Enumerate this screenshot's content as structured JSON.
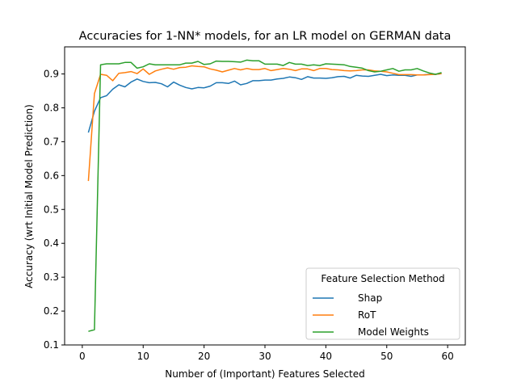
{
  "chart_data": {
    "type": "line",
    "title": "Accuracies for 1-NN* models, for an LR model on GERMAN data",
    "xlabel": "Number of (Important) Features Selected",
    "ylabel": "Accuracy (wrt Initial Model Prediction)",
    "xlim": [
      -2.9,
      62.9
    ],
    "ylim": [
      0.1,
      0.98
    ],
    "xticks": [
      0,
      10,
      20,
      30,
      40,
      50,
      60
    ],
    "yticks": [
      0.1,
      0.2,
      0.3,
      0.4,
      0.5,
      0.6,
      0.7,
      0.8,
      0.9
    ],
    "grid": false,
    "legend": {
      "title": "Feature Selection Method",
      "placement": "lower right"
    },
    "x": [
      1,
      2,
      3,
      4,
      5,
      6,
      7,
      8,
      9,
      10,
      11,
      12,
      13,
      14,
      15,
      16,
      17,
      18,
      19,
      20,
      21,
      22,
      23,
      24,
      25,
      26,
      27,
      28,
      29,
      30,
      31,
      32,
      33,
      34,
      35,
      36,
      37,
      38,
      39,
      40,
      41,
      42,
      43,
      44,
      45,
      46,
      47,
      48,
      49,
      50,
      51,
      52,
      53,
      54,
      55,
      56,
      57,
      58,
      59
    ],
    "series": [
      {
        "name": "Shap",
        "color": "#1f77b4",
        "values": [
          0.727,
          0.79,
          0.83,
          0.836,
          0.855,
          0.868,
          0.862,
          0.876,
          0.885,
          0.878,
          0.874,
          0.875,
          0.871,
          0.862,
          0.876,
          0.867,
          0.86,
          0.856,
          0.86,
          0.859,
          0.864,
          0.874,
          0.874,
          0.872,
          0.879,
          0.868,
          0.872,
          0.88,
          0.88,
          0.882,
          0.882,
          0.885,
          0.887,
          0.891,
          0.889,
          0.884,
          0.892,
          0.888,
          0.888,
          0.887,
          0.889,
          0.892,
          0.893,
          0.888,
          0.896,
          0.894,
          0.893,
          0.896,
          0.899,
          0.895,
          0.897,
          0.896,
          0.896,
          0.893,
          0.897,
          0.897,
          0.899,
          0.899,
          0.901
        ]
      },
      {
        "name": "RoT",
        "color": "#ff7f0e",
        "values": [
          0.584,
          0.842,
          0.899,
          0.896,
          0.88,
          0.902,
          0.904,
          0.907,
          0.901,
          0.915,
          0.899,
          0.909,
          0.914,
          0.918,
          0.914,
          0.919,
          0.92,
          0.924,
          0.922,
          0.921,
          0.915,
          0.911,
          0.906,
          0.911,
          0.916,
          0.912,
          0.916,
          0.913,
          0.913,
          0.916,
          0.91,
          0.913,
          0.916,
          0.914,
          0.91,
          0.915,
          0.915,
          0.91,
          0.916,
          0.916,
          0.913,
          0.912,
          0.91,
          0.909,
          0.91,
          0.912,
          0.912,
          0.909,
          0.908,
          0.906,
          0.902,
          0.898,
          0.898,
          0.898,
          0.897,
          0.897,
          0.898,
          0.899,
          0.901
        ]
      },
      {
        "name": "Model Weights",
        "color": "#2ca02c",
        "values": [
          0.14,
          0.145,
          0.927,
          0.93,
          0.93,
          0.93,
          0.934,
          0.934,
          0.917,
          0.921,
          0.93,
          0.927,
          0.927,
          0.927,
          0.927,
          0.927,
          0.932,
          0.932,
          0.937,
          0.928,
          0.93,
          0.938,
          0.937,
          0.937,
          0.936,
          0.935,
          0.941,
          0.939,
          0.939,
          0.929,
          0.929,
          0.929,
          0.925,
          0.934,
          0.929,
          0.929,
          0.925,
          0.927,
          0.925,
          0.93,
          0.929,
          0.928,
          0.927,
          0.922,
          0.92,
          0.917,
          0.91,
          0.906,
          0.908,
          0.912,
          0.916,
          0.908,
          0.912,
          0.912,
          0.916,
          0.909,
          0.903,
          0.899,
          0.904
        ]
      }
    ]
  }
}
